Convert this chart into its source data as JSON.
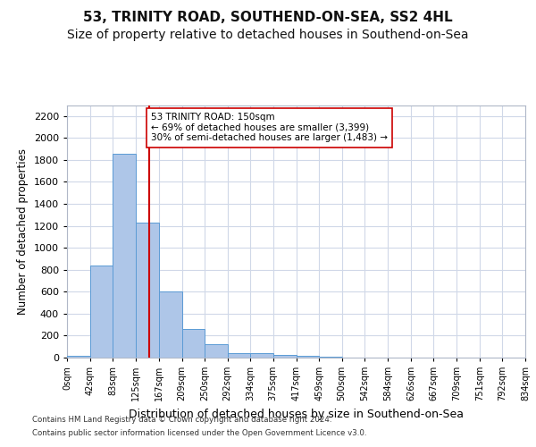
{
  "title_line1": "53, TRINITY ROAD, SOUTHEND-ON-SEA, SS2 4HL",
  "title_line2": "Size of property relative to detached houses in Southend-on-Sea",
  "xlabel": "Distribution of detached houses by size in Southend-on-Sea",
  "ylabel": "Number of detached properties",
  "footnote1": "Contains HM Land Registry data © Crown copyright and database right 2024.",
  "footnote2": "Contains public sector information licensed under the Open Government Licence v3.0.",
  "bin_edges": [
    0,
    42,
    83,
    125,
    167,
    209,
    250,
    292,
    334,
    375,
    417,
    459,
    500,
    542,
    584,
    626,
    667,
    709,
    751,
    792,
    834
  ],
  "bar_heights": [
    20,
    840,
    1860,
    1230,
    600,
    260,
    120,
    40,
    40,
    25,
    15,
    5,
    0,
    0,
    0,
    0,
    0,
    0,
    0,
    0
  ],
  "bar_color": "#aec6e8",
  "bar_edge_color": "#5b9bd5",
  "grid_color": "#d0d8e8",
  "property_line_x": 150,
  "vline_color": "#cc0000",
  "annotation_text": "53 TRINITY ROAD: 150sqm\n← 69% of detached houses are smaller (3,399)\n30% of semi-detached houses are larger (1,483) →",
  "annotation_box_color": "#ffffff",
  "annotation_box_edge": "#cc0000",
  "ylim": [
    0,
    2300
  ],
  "yticks": [
    0,
    200,
    400,
    600,
    800,
    1000,
    1200,
    1400,
    1600,
    1800,
    2000,
    2200
  ],
  "background_color": "#ffffff",
  "title_fontsize": 11,
  "subtitle_fontsize": 10
}
